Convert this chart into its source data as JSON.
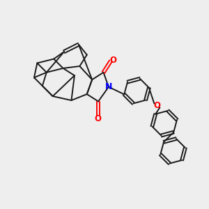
{
  "background_color": "#eeeeee",
  "bond_color": "#1a1a1a",
  "nitrogen_color": "#0000ff",
  "oxygen_color": "#ff0000",
  "line_width": 1.4,
  "figsize": [
    3.0,
    3.0
  ],
  "dpi": 100,
  "xlim": [
    0,
    10
  ],
  "ylim": [
    0,
    10
  ]
}
